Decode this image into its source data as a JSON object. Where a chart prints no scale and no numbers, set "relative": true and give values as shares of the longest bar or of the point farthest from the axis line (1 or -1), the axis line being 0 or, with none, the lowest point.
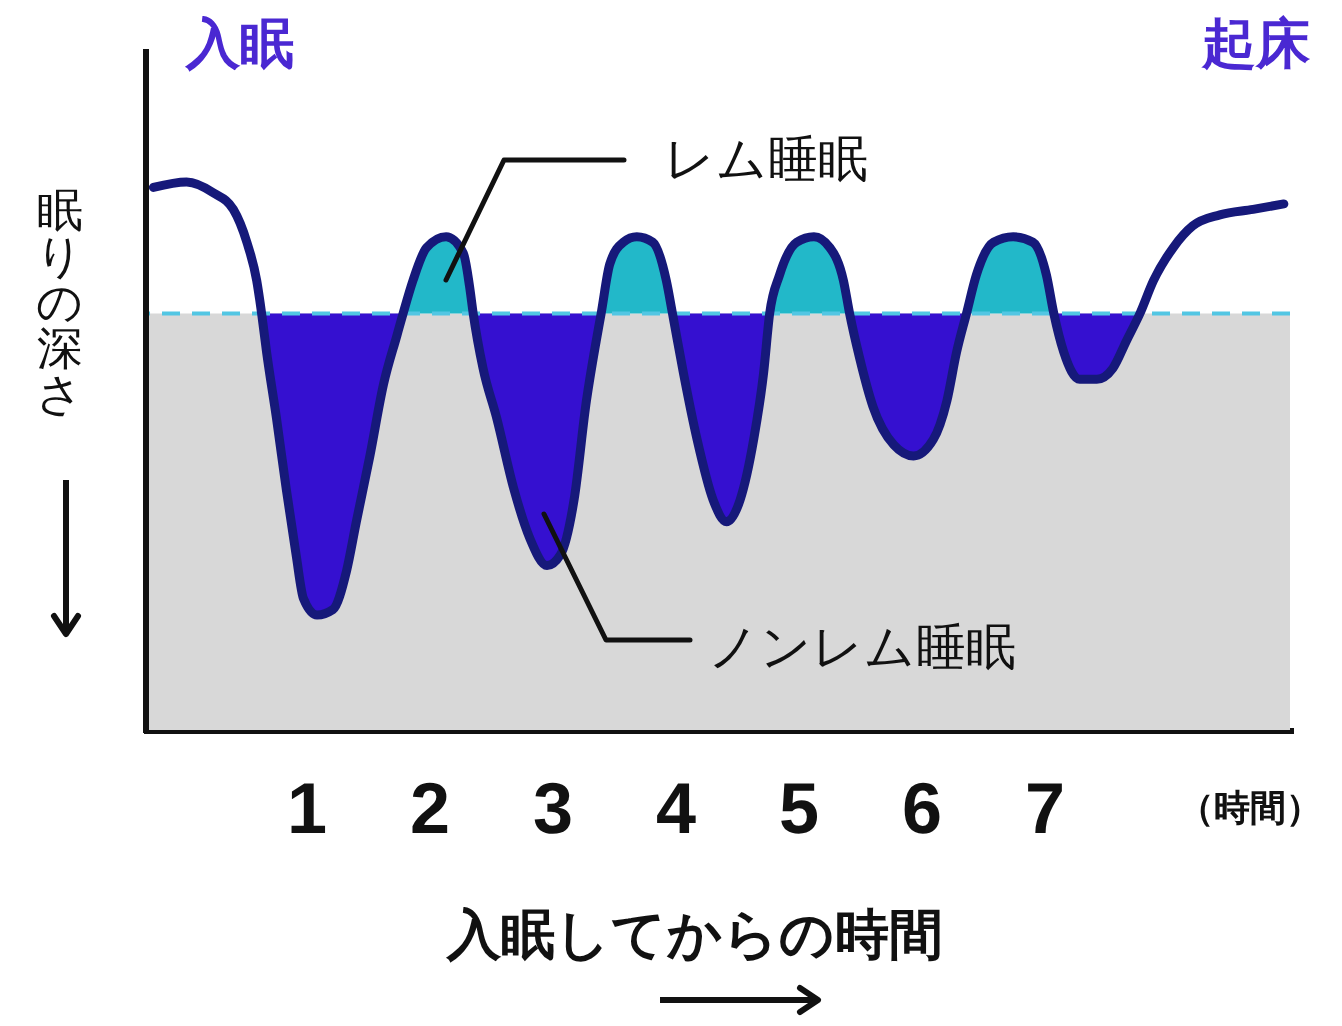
{
  "chart_data": {
    "type": "line",
    "xlabel": "入眠してからの時間",
    "ylabel": "眠りの深さ",
    "x": [
      -0.24,
      0.03,
      0.25,
      0.41,
      0.52,
      0.6,
      0.64,
      0.68,
      0.76,
      0.84,
      0.92,
      0.98,
      1.09,
      1.22,
      1.33,
      1.41,
      1.52,
      1.63,
      1.74,
      1.79,
      1.87,
      1.98,
      2.14,
      2.28,
      2.33,
      2.36,
      2.44,
      2.55,
      2.69,
      2.82,
      2.96,
      3.07,
      3.18,
      3.28,
      3.36,
      3.4,
      3.47,
      3.58,
      3.69,
      3.82,
      3.93,
      3.98,
      4.07,
      4.18,
      4.31,
      4.42,
      4.53,
      4.64,
      4.72,
      4.77,
      4.85,
      4.99,
      5.13,
      5.26,
      5.37,
      5.42,
      5.5,
      5.61,
      5.78,
      5.94,
      6.1,
      6.21,
      6.29,
      6.37,
      6.45,
      6.59,
      6.75,
      6.91,
      7.02,
      7.08,
      7.16,
      7.29,
      7.43,
      7.56,
      7.67,
      7.78,
      7.89,
      8.05,
      8.21,
      8.43,
      8.7,
      8.95
    ],
    "xlim": [
      -0.3,
      9.0
    ],
    "xticks": [
      1,
      2,
      3,
      4,
      5,
      6,
      7
    ],
    "relative": true,
    "tick_labels": "x",
    "series": [
      {
        "color": "#16197a",
        "values": [
          0.99,
          1,
          0.98,
          0.95,
          0.89,
          0.82,
          0.76,
          0.69,
          0.57,
          0.44,
          0.32,
          0.24,
          0.21,
          0.22,
          0.29,
          0.38,
          0.5,
          0.63,
          0.72,
          0.76,
          0.82,
          0.88,
          0.9,
          0.87,
          0.81,
          0.76,
          0.66,
          0.57,
          0.44,
          0.35,
          0.3,
          0.32,
          0.42,
          0.6,
          0.71,
          0.76,
          0.85,
          0.89,
          0.9,
          0.89,
          0.82,
          0.76,
          0.65,
          0.53,
          0.42,
          0.38,
          0.42,
          0.53,
          0.65,
          0.76,
          0.83,
          0.89,
          0.9,
          0.88,
          0.82,
          0.76,
          0.68,
          0.59,
          0.52,
          0.5,
          0.53,
          0.6,
          0.69,
          0.76,
          0.83,
          0.89,
          0.9,
          0.89,
          0.83,
          0.76,
          0.69,
          0.64,
          0.64,
          0.66,
          0.71,
          0.76,
          0.82,
          0.88,
          0.92,
          0.94,
          0.95,
          0.96
        ]
      },
      {
        "type": "area",
        "color": "#22b8c9",
        "values": [
          null,
          null,
          null,
          null,
          null,
          null,
          null,
          null,
          null,
          null,
          null,
          null,
          null,
          null,
          null,
          null,
          null,
          null,
          null,
          0.76,
          0.82,
          0.88,
          0.9,
          0.87,
          0.81,
          0.76,
          null,
          null,
          null,
          null,
          null,
          null,
          null,
          null,
          null,
          0.76,
          0.85,
          0.89,
          0.9,
          0.89,
          0.82,
          0.76,
          null,
          null,
          null,
          null,
          null,
          null,
          null,
          0.76,
          0.83,
          0.89,
          0.9,
          0.88,
          0.82,
          0.76,
          null,
          null,
          null,
          null,
          null,
          null,
          null,
          0.76,
          0.83,
          0.89,
          0.9,
          0.89,
          0.83,
          0.76,
          null,
          null,
          null,
          null,
          null,
          null,
          null,
          null,
          null,
          null,
          null,
          null
        ]
      },
      {
        "type": "area",
        "color": "#3510d0",
        "values": [
          null,
          null,
          null,
          null,
          null,
          null,
          0.76,
          0.69,
          0.57,
          0.44,
          0.32,
          0.24,
          0.21,
          0.22,
          0.29,
          0.38,
          0.5,
          0.63,
          0.72,
          0.76,
          null,
          null,
          null,
          null,
          null,
          0.76,
          0.66,
          0.57,
          0.44,
          0.35,
          0.3,
          0.32,
          0.42,
          0.6,
          0.71,
          0.76,
          null,
          null,
          null,
          null,
          null,
          0.76,
          0.65,
          0.53,
          0.42,
          0.38,
          0.42,
          0.53,
          0.65,
          0.76,
          null,
          null,
          null,
          null,
          null,
          0.76,
          0.68,
          0.59,
          0.52,
          0.5,
          0.53,
          0.6,
          0.69,
          0.76,
          null,
          null,
          null,
          null,
          null,
          0.76,
          0.69,
          0.64,
          0.64,
          0.66,
          0.71,
          0.76,
          null,
          null,
          null,
          null,
          null,
          null
        ]
      }
    ],
    "bands": [
      {
        "axis": "y",
        "from": 0,
        "to": 0.76,
        "color": "#d8d8d8"
      }
    ],
    "ref_lines": [
      {
        "axis": "y",
        "value": 0.76,
        "color": "#52c6e3",
        "line_style": "dashed"
      }
    ],
    "annotations": [
      "入眠",
      "起床",
      "（時間）",
      "レム睡眠",
      "ノンレム睡眠"
    ]
  }
}
